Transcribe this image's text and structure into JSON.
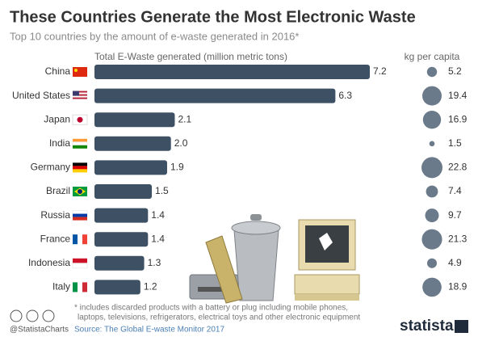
{
  "chart_data": {
    "type": "bar",
    "title": "These Countries Generate the Most Electronic Waste",
    "subtitle": "Top 10 countries by the amount of e-waste generated in 2016*",
    "x_label": "Total E-Waste generated (million metric tons)",
    "per_capita_label": "kg per capita",
    "categories": [
      "China",
      "United States",
      "Japan",
      "India",
      "Germany",
      "Brazil",
      "Russia",
      "France",
      "Indonesia",
      "Italy"
    ],
    "values": [
      7.2,
      6.3,
      2.1,
      2.0,
      1.9,
      1.5,
      1.4,
      1.4,
      1.3,
      1.2
    ],
    "value_labels": [
      "7.2",
      "6.3",
      "2.1",
      "2.0",
      "1.9",
      "1.5",
      "1.4",
      "1.4",
      "1.3",
      "1.2"
    ],
    "color": "#3e5064",
    "per_capita": [
      5.2,
      19.4,
      16.9,
      1.5,
      22.8,
      7.4,
      9.7,
      21.3,
      4.9,
      18.9
    ],
    "per_capita_color": "#6b7a8a",
    "footnote": [
      "* includes discarded products with a battery or plug including mobile phones,",
      "laptops, televisions, refrigerators, electrical toys and other electronic equipment"
    ],
    "source": "Source: The Global E-waste Monitor 2017",
    "handle": "@StatistaCharts",
    "brand": "statista"
  }
}
